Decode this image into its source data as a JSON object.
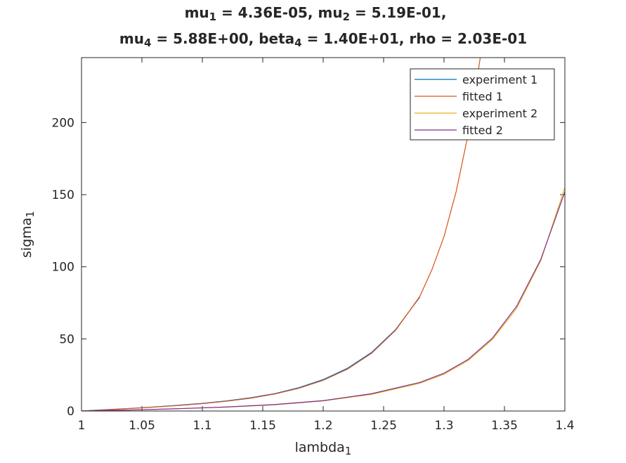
{
  "chart_data": {
    "type": "line",
    "title_line1": {
      "parts": [
        {
          "text": "mu"
        },
        {
          "text": "1",
          "sub": true
        },
        {
          "text": " = 4.36E-05, mu"
        },
        {
          "text": "2",
          "sub": true
        },
        {
          "text": " = 5.19E-01,"
        }
      ]
    },
    "title_line2": {
      "parts": [
        {
          "text": "mu"
        },
        {
          "text": "4",
          "sub": true
        },
        {
          "text": " = 5.88E+00, beta"
        },
        {
          "text": "4",
          "sub": true
        },
        {
          "text": " = 1.40E+01, rho = 2.03E-01"
        }
      ]
    },
    "xlabel": {
      "base": "lambda",
      "sub": "1"
    },
    "ylabel": {
      "base": "sigma",
      "sub": "1"
    },
    "xlim": [
      1,
      1.4
    ],
    "ylim": [
      0,
      245
    ],
    "xticks": [
      1,
      1.05,
      1.1,
      1.15,
      1.2,
      1.25,
      1.3,
      1.35,
      1.4
    ],
    "xtick_labels": [
      "1",
      "1.05",
      "1.1",
      "1.15",
      "1.2",
      "1.25",
      "1.3",
      "1.35",
      "1.4"
    ],
    "yticks": [
      0,
      50,
      100,
      150,
      200
    ],
    "ytick_labels": [
      "0",
      "50",
      "100",
      "150",
      "200"
    ],
    "grid": false,
    "legend_position": "top-right",
    "series": [
      {
        "name": "experiment 1",
        "color": "#0072BD",
        "x": [
          1,
          1.02,
          1.04,
          1.06,
          1.08,
          1.1,
          1.12,
          1.14,
          1.16,
          1.18,
          1.2,
          1.22,
          1.24,
          1.26,
          1.28
        ],
        "y": [
          0,
          0.9,
          1.8,
          2.8,
          4.0,
          5.3,
          7.0,
          9.2,
          12.1,
          16.2,
          21.8,
          29.6,
          40.6,
          56.5,
          79.0
        ]
      },
      {
        "name": "fitted 1",
        "color": "#D95319",
        "x": [
          1,
          1.02,
          1.04,
          1.06,
          1.08,
          1.1,
          1.12,
          1.14,
          1.16,
          1.18,
          1.2,
          1.22,
          1.24,
          1.26,
          1.28,
          1.29,
          1.3,
          1.31,
          1.32,
          1.33
        ],
        "y": [
          0,
          0.8,
          1.7,
          2.7,
          3.8,
          5.1,
          6.8,
          8.9,
          11.8,
          15.8,
          21.3,
          29.0,
          40.0,
          56.0,
          79.5,
          98.0,
          121.0,
          152.0,
          192.0,
          245.0
        ]
      },
      {
        "name": "experiment 2",
        "color": "#EDB120",
        "x": [
          1,
          1.04,
          1.08,
          1.12,
          1.16,
          1.2,
          1.24,
          1.28,
          1.3,
          1.32,
          1.34,
          1.36,
          1.38,
          1.4
        ],
        "y": [
          0,
          0.7,
          1.6,
          2.7,
          4.3,
          7.0,
          11.5,
          19.2,
          25.5,
          35.0,
          49.5,
          71.0,
          104.0,
          155.0
        ]
      },
      {
        "name": "fitted 2",
        "color": "#7E2F8E",
        "x": [
          1,
          1.04,
          1.08,
          1.12,
          1.16,
          1.2,
          1.24,
          1.28,
          1.3,
          1.32,
          1.34,
          1.36,
          1.38,
          1.4
        ],
        "y": [
          0,
          0.7,
          1.6,
          2.8,
          4.5,
          7.2,
          12.0,
          19.8,
          26.2,
          35.8,
          50.5,
          72.5,
          105.0,
          152.0
        ]
      }
    ]
  }
}
